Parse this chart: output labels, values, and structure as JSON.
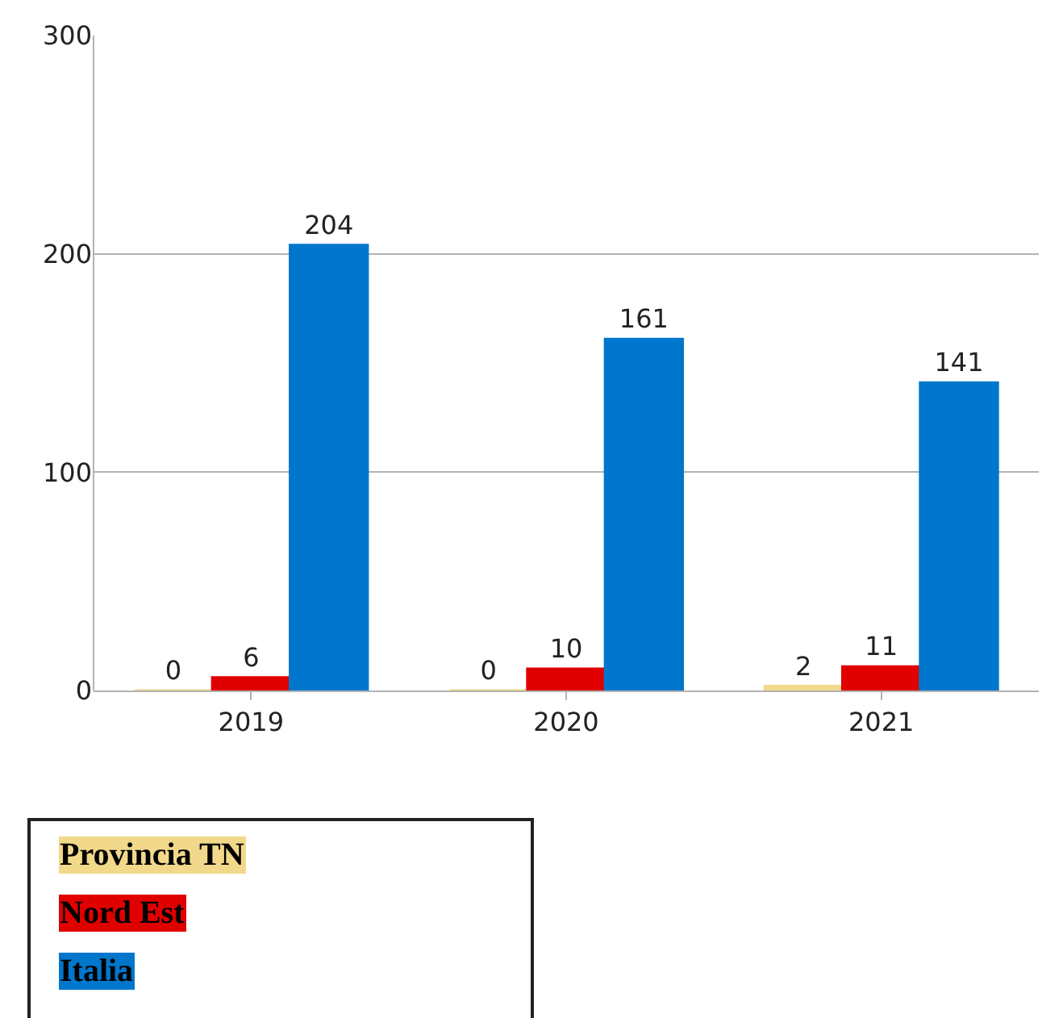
{
  "chart_data": {
    "type": "bar",
    "categories": [
      "2019",
      "2020",
      "2021"
    ],
    "series": [
      {
        "name": "Provincia TN",
        "color": "#f2d88a",
        "values": [
          0,
          0,
          2
        ]
      },
      {
        "name": "Nord Est",
        "color": "#e00000",
        "values": [
          6,
          10,
          11
        ]
      },
      {
        "name": "Italia",
        "color": "#0077cc",
        "values": [
          204,
          161,
          141
        ]
      }
    ],
    "ylim": [
      0,
      300
    ],
    "yticks": [
      0,
      100,
      200,
      300
    ],
    "grid": "y",
    "data_labels": true,
    "legend": "bottom left"
  }
}
